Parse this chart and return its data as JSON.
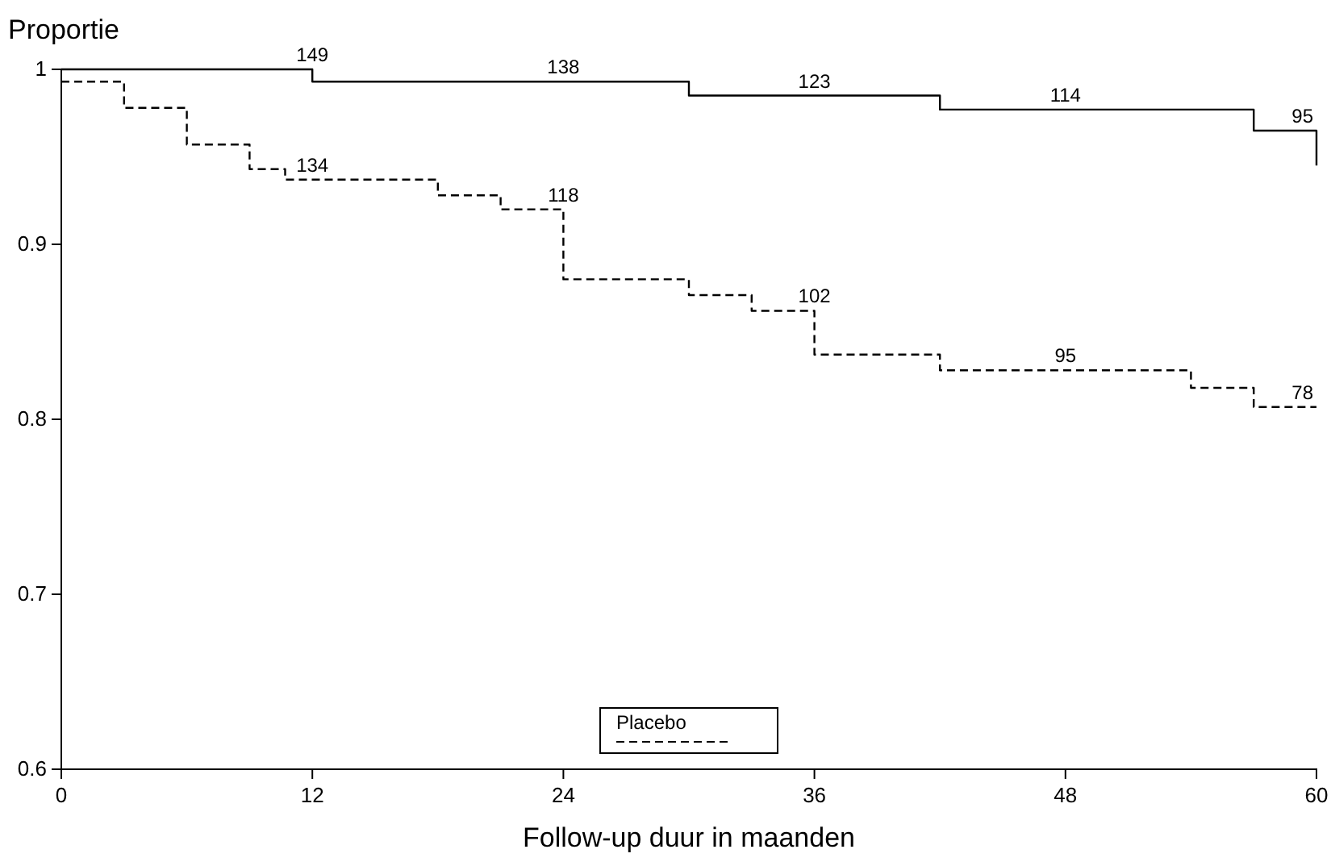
{
  "chart_data": {
    "type": "step",
    "xlabel": "Follow-up duur in maanden",
    "ylabel": "Proportie",
    "xlim": [
      0,
      60
    ],
    "xticks": [
      0,
      12,
      24,
      36,
      48,
      60
    ],
    "ylim": [
      0.6,
      1
    ],
    "yticks": [
      0.6,
      0.7,
      0.8,
      0.9,
      {
        "value": 1,
        "label": "1"
      }
    ],
    "grid": false,
    "legend": "bottom",
    "marker": "none",
    "series": [
      {
        "color": "#000000",
        "line_style": "solid",
        "x": [
          0,
          12,
          30,
          42,
          57,
          60,
          60
        ],
        "values": [
          1,
          0.993,
          0.985,
          0.977,
          0.965,
          0.965,
          0.945
        ]
      },
      {
        "name": "Placebo",
        "color": "#000000",
        "line_style": "dashed",
        "x": [
          0,
          3,
          6,
          9,
          10.7,
          18,
          21,
          24,
          30,
          33,
          36,
          42,
          54,
          57,
          60
        ],
        "values": [
          0.993,
          0.978,
          0.957,
          0.943,
          0.937,
          0.928,
          0.92,
          0.88,
          0.871,
          0.862,
          0.837,
          0.828,
          0.818,
          0.807,
          0.807
        ]
      }
    ],
    "annotations": [
      {
        "text": "149",
        "x": 12,
        "y": 1
      },
      {
        "text": "138",
        "x": 24,
        "y": 0.993
      },
      {
        "text": "123",
        "x": 36,
        "y": 0.985
      },
      {
        "text": "114",
        "x": 48,
        "y": 0.977
      },
      {
        "text": "95",
        "x": 60,
        "y": 0.965
      },
      {
        "text": "134",
        "x": 12,
        "y": 0.937
      },
      {
        "text": "118",
        "x": 24,
        "y": 0.92
      },
      {
        "text": "102",
        "x": 36,
        "y": 0.862
      },
      {
        "text": "95",
        "x": 48,
        "y": 0.828
      },
      {
        "text": "78",
        "x": 60,
        "y": 0.807
      }
    ]
  }
}
